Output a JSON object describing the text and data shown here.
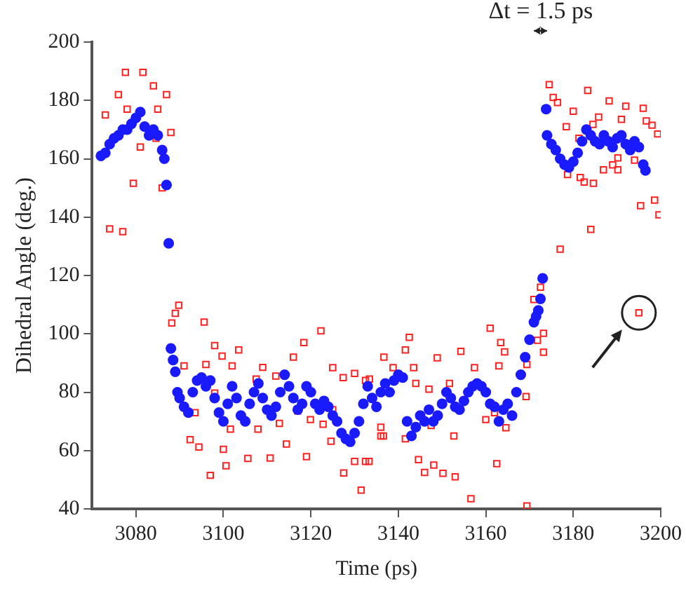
{
  "chart_data": {
    "type": "scatter",
    "xlabel": "Time (ps)",
    "ylabel": "Dihedral Angle (deg.)",
    "xlim": [
      3070,
      3200
    ],
    "xticks": [
      3080,
      3100,
      3120,
      3140,
      3160,
      3180,
      3200
    ],
    "ylim": [
      40,
      200
    ],
    "yticks": [
      40,
      60,
      80,
      100,
      120,
      140,
      160,
      180,
      200
    ],
    "grid": false,
    "legend": false,
    "annotations": [
      "Δt = 1.5 ps"
    ],
    "series": [
      {
        "color": "#1a1aff",
        "marker": "circle",
        "x": [
          3072,
          3073,
          3074,
          3075,
          3076,
          3077,
          3078,
          3079,
          3080,
          3081,
          3082,
          3083,
          3084,
          3085,
          3086,
          3086.5,
          3087,
          3087.5,
          3088,
          3088.5,
          3089,
          3089.5,
          3090,
          3091,
          3092,
          3093,
          3094,
          3095,
          3096,
          3097,
          3098,
          3099,
          3100,
          3101,
          3102,
          3103,
          3104,
          3105,
          3106,
          3107,
          3108,
          3109,
          3110,
          3111,
          3112,
          3113,
          3114,
          3115,
          3116,
          3117,
          3118,
          3119,
          3120,
          3121,
          3122,
          3123,
          3124,
          3125,
          3126,
          3127,
          3128,
          3129,
          3130,
          3131,
          3132,
          3133,
          3134,
          3135,
          3136,
          3137,
          3138,
          3139,
          3140,
          3141,
          3142,
          3143,
          3144,
          3145,
          3146,
          3147,
          3148,
          3149,
          3150,
          3151,
          3152,
          3153,
          3154,
          3155,
          3156,
          3157,
          3158,
          3159,
          3160,
          3161,
          3162,
          3163,
          3164,
          3165,
          3166,
          3167,
          3168,
          3169,
          3170,
          3171,
          3171.5,
          3172,
          3172.5,
          3173,
          3173.8,
          3174,
          3175,
          3176,
          3177,
          3178,
          3179,
          3180,
          3181,
          3182,
          3183,
          3184,
          3185,
          3186,
          3187,
          3188,
          3189,
          3190,
          3191,
          3192,
          3193,
          3194,
          3195,
          3196,
          3196.5
        ],
        "values": [
          161,
          162,
          165,
          167,
          168,
          170,
          170,
          172,
          174,
          176,
          171,
          168,
          170,
          168,
          163,
          160,
          151,
          131,
          95,
          91,
          87,
          80,
          78,
          75,
          73,
          80,
          84,
          85,
          82,
          84,
          78,
          73,
          70,
          76,
          82,
          78,
          72,
          70,
          76,
          80,
          83,
          78,
          74,
          72,
          75,
          80,
          86,
          82,
          78,
          74,
          76,
          82,
          80,
          76,
          74,
          77,
          75,
          72,
          70,
          66,
          64,
          63,
          66,
          70,
          76,
          82,
          78,
          75,
          80,
          83,
          80,
          84,
          86,
          85,
          70,
          65,
          68,
          72,
          70,
          74,
          70,
          72,
          76,
          80,
          78,
          75,
          74,
          77,
          80,
          82,
          83,
          82,
          80,
          76,
          75,
          70,
          74,
          76,
          72,
          80,
          86,
          92,
          98,
          104,
          106,
          108,
          112,
          119,
          177,
          168,
          165,
          163,
          160,
          158,
          157,
          159,
          162,
          166,
          170,
          168,
          166,
          165,
          168,
          166,
          164,
          167,
          168,
          165,
          163,
          166,
          164,
          158,
          156
        ]
      },
      {
        "color": "#ff2020",
        "marker": "square",
        "x": [
          3073,
          3074,
          3076,
          3077,
          3077.6,
          3078,
          3079.4,
          3081,
          3081.6,
          3084,
          3084.6,
          3085,
          3086,
          3087,
          3088,
          3088.2,
          3089,
          3089.8,
          3091,
          3092.4,
          3093.5,
          3094.4,
          3095.6,
          3096,
          3097,
          3098,
          3098,
          3099.7,
          3100,
          3100.6,
          3101.6,
          3102,
          3103.5,
          3105.6,
          3107.5,
          3107.9,
          3109,
          3110.7,
          3112,
          3112.8,
          3114.4,
          3116,
          3117,
          3118.4,
          3119,
          3119.9,
          3122.3,
          3122.8,
          3124.6,
          3125,
          3125,
          3127.4,
          3127.5,
          3130,
          3130,
          3131.5,
          3132.5,
          3132.5,
          3133.3,
          3133.4,
          3136,
          3136,
          3136.6,
          3136.7,
          3138.8,
          3141.6,
          3141.6,
          3142.5,
          3143.5,
          3144,
          3144.6,
          3146,
          3147,
          3147.5,
          3148.1,
          3148.9,
          3150.2,
          3151.7,
          3152.7,
          3153,
          3154.3,
          3156.6,
          3157.4,
          3160,
          3161,
          3162,
          3162.5,
          3163,
          3163.4,
          3164.3,
          3164.6,
          3169.2,
          3169.4,
          3169.4,
          3171,
          3171.8,
          3172.5,
          3173.2,
          3173.2,
          3174.5,
          3175.4,
          3176.4,
          3177,
          3178.4,
          3178.7,
          3180,
          3181.3,
          3181.6,
          3182.5,
          3183.3,
          3184,
          3184.5,
          3184.6,
          3185.8,
          3186.9,
          3188.2,
          3189,
          3190.2,
          3190.2,
          3191,
          3192,
          3194,
          3195,
          3195.4,
          3196,
          3196.7,
          3198,
          3198.6,
          3199.3,
          3199.6
        ],
        "values": [
          175,
          136,
          182,
          135,
          189.6,
          177,
          151.6,
          164,
          189.6,
          185,
          167,
          177,
          150,
          182,
          169,
          103.7,
          107,
          109.8,
          89,
          63.7,
          73,
          61.2,
          104,
          89.5,
          51.5,
          96,
          79.7,
          92.4,
          60.4,
          54.8,
          67.3,
          89,
          94.5,
          57.3,
          84.5,
          67.3,
          88.5,
          57.4,
          85.5,
          69.3,
          62.2,
          92,
          73.6,
          97,
          57.9,
          70.6,
          101,
          69,
          63.2,
          88.4,
          74,
          85,
          52.3,
          86.4,
          56.3,
          46.4,
          84,
          56.3,
          56.3,
          84.5,
          65,
          68,
          65,
          92,
          88.4,
          94.5,
          64,
          98.8,
          88.4,
          83,
          56.9,
          52.5,
          81,
          68.6,
          55,
          91.8,
          52.2,
          83,
          65,
          51,
          94,
          43.5,
          88.4,
          70.6,
          101.9,
          73,
          55.5,
          89,
          97,
          93.8,
          67.8,
          78.5,
          89.5,
          41,
          111.8,
          97.8,
          116,
          93.7,
          100.2,
          185.4,
          181,
          179.3,
          129,
          171,
          154.6,
          176.3,
          167,
          153.6,
          152,
          183.4,
          135.8,
          171.8,
          151.6,
          174.3,
          156.2,
          179.8,
          157.9,
          156.2,
          160.3,
          173.5,
          178,
          159.5,
          107.2,
          143.9,
          177.3,
          173,
          171.5,
          145.8,
          168.5,
          140.8
        ]
      }
    ]
  }
}
